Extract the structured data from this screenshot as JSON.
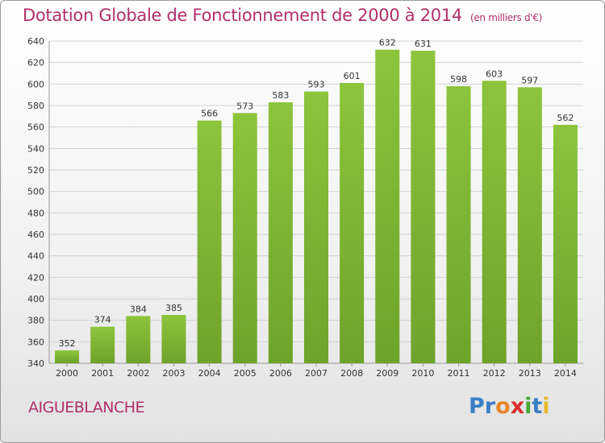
{
  "chart_data": {
    "type": "bar",
    "title": "Dotation Globale de Fonctionnement de 2000 à 2014",
    "unit_label": "(en milliers d'€)",
    "categories": [
      "2000",
      "2001",
      "2002",
      "2003",
      "2004",
      "2005",
      "2006",
      "2007",
      "2008",
      "2009",
      "2010",
      "2011",
      "2012",
      "2013",
      "2014"
    ],
    "values": [
      352,
      374,
      384,
      385,
      566,
      573,
      583,
      593,
      601,
      632,
      631,
      598,
      603,
      597,
      562
    ],
    "ylim": [
      340,
      640
    ],
    "yticks": [
      340,
      360,
      380,
      400,
      420,
      440,
      460,
      480,
      500,
      520,
      540,
      560,
      580,
      600,
      620,
      640
    ],
    "grid": true,
    "bar_color": "#8cc43c",
    "bar_color_dark": "#6ea32a"
  },
  "footer": {
    "commune": "AIGUEBLANCHE",
    "logo_letters": [
      {
        "ch": "P",
        "color": "#3a7fc4"
      },
      {
        "ch": "r",
        "color": "#3a7fc4"
      },
      {
        "ch": "o",
        "color": "#e8852a"
      },
      {
        "ch": "x",
        "color": "#d8302c"
      },
      {
        "ch": "i",
        "color": "#4aa63c"
      },
      {
        "ch": "t",
        "color": "#3a7fc4"
      },
      {
        "ch": "i",
        "color": "#e8b82a"
      }
    ]
  }
}
